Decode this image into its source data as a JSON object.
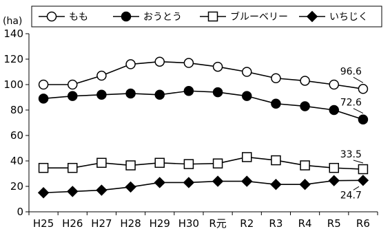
{
  "chart_data": {
    "type": "line",
    "y_unit": "(ha)",
    "categories": [
      "H25",
      "H26",
      "H27",
      "H28",
      "H29",
      "H30",
      "R元",
      "R2",
      "R3",
      "R4",
      "R5",
      "R6"
    ],
    "ylim": [
      0,
      140
    ],
    "yticks": [
      0,
      20,
      40,
      60,
      80,
      100,
      120,
      140
    ],
    "grid": false,
    "legend_position": "top",
    "series": [
      {
        "name": "もも",
        "marker": "circle-open",
        "values": [
          100,
          100,
          107,
          116,
          118,
          117,
          114,
          110,
          105,
          103,
          100,
          96.6
        ]
      },
      {
        "name": "おうとう",
        "marker": "circle-filled",
        "values": [
          89,
          91,
          92,
          93,
          92,
          95,
          94,
          91,
          85,
          83,
          80,
          72.6
        ]
      },
      {
        "name": "ブルーベリー",
        "marker": "square-open",
        "values": [
          34.5,
          34.5,
          38.5,
          36.5,
          38.5,
          37.5,
          38,
          43,
          40.5,
          36.5,
          34.5,
          33.5
        ]
      },
      {
        "name": "いちじく",
        "marker": "diamond-filled",
        "values": [
          15,
          16,
          17,
          19.5,
          23,
          23,
          24,
          24,
          21.5,
          21.5,
          24.5,
          24.7
        ]
      }
    ],
    "data_labels": [
      {
        "series": 0,
        "index": 11,
        "text": "96.6"
      },
      {
        "series": 1,
        "index": 11,
        "text": "72.6"
      },
      {
        "series": 2,
        "index": 11,
        "text": "33.5"
      },
      {
        "series": 3,
        "index": 11,
        "text": "24.7"
      }
    ]
  }
}
